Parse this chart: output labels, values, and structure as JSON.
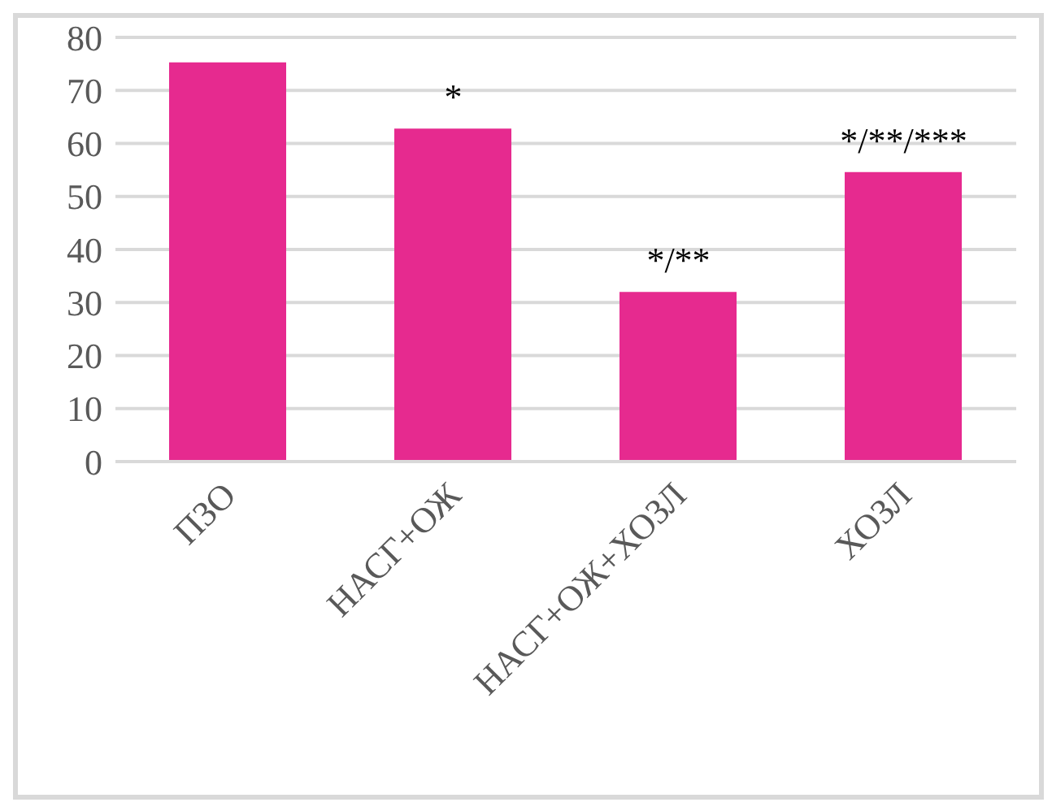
{
  "chart_data": {
    "type": "bar",
    "categories": [
      "ПЗО",
      "НАСГ+ОЖ",
      "НАСГ+ОЖ+ХОЗЛ",
      "ХОЗЛ"
    ],
    "values": [
      75.3,
      62.8,
      32.0,
      54.6
    ],
    "color": "#e62a8f",
    "ylim": [
      0,
      80
    ],
    "yticks": [
      0,
      10,
      20,
      30,
      40,
      50,
      60,
      70,
      80
    ],
    "grid": "y",
    "annotations": [
      {
        "text": "*",
        "x": "НАСГ+ОЖ",
        "y": 62.8
      },
      {
        "text": "*/**",
        "x": "НАСГ+ОЖ+ХОЗЛ",
        "y": 32.0
      },
      {
        "text": "*/**/***",
        "x": "ХОЗЛ",
        "y": 54.6
      }
    ]
  }
}
